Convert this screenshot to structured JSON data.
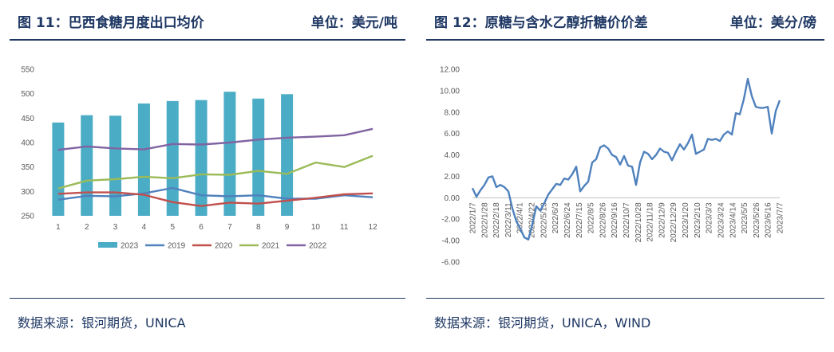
{
  "left": {
    "title": "图 11：巴西食糖月度出口均价",
    "unit": "单位：美元/吨",
    "source": "数据来源：银河期货，UNICA"
  },
  "right": {
    "title": "图 12：原糖与含水乙醇折糖价价差",
    "unit": "单位：美分/磅",
    "source": "数据来源：银河期货，UNICA，WIND"
  },
  "chart_data": [
    {
      "type": "bar+line",
      "categories": [
        "1",
        "2",
        "3",
        "4",
        "5",
        "6",
        "7",
        "8",
        "9",
        "10",
        "11",
        "12"
      ],
      "ylim": [
        250,
        550
      ],
      "yticks": [
        250,
        300,
        350,
        400,
        450,
        500,
        550
      ],
      "legend_position": "bottom",
      "grid": false,
      "series": [
        {
          "name": "2023",
          "kind": "bar",
          "color": "#4bacc6",
          "values": [
            441,
            456,
            455,
            480,
            485,
            487,
            504,
            490,
            499,
            null,
            null,
            null
          ]
        },
        {
          "name": "2019",
          "kind": "line",
          "color": "#4f81bd",
          "values": [
            283,
            291,
            290,
            296,
            307,
            292,
            290,
            292,
            285,
            285,
            292,
            288
          ]
        },
        {
          "name": "2020",
          "kind": "line",
          "color": "#c0504d",
          "values": [
            295,
            298,
            298,
            293,
            278,
            270,
            277,
            275,
            281,
            287,
            294,
            296
          ]
        },
        {
          "name": "2021",
          "kind": "line",
          "color": "#9bbb59",
          "values": [
            306,
            322,
            325,
            330,
            327,
            335,
            334,
            342,
            336,
            359,
            350,
            373
          ]
        },
        {
          "name": "2022",
          "kind": "line",
          "color": "#8064a2",
          "values": [
            385,
            392,
            388,
            386,
            397,
            396,
            400,
            406,
            410,
            412,
            415,
            428
          ]
        }
      ]
    },
    {
      "type": "line",
      "color": "#4f81bd",
      "ylim": [
        -6,
        12
      ],
      "yticks": [
        "12.00",
        "10.00",
        "8.00",
        "6.00",
        "4.00",
        "2.00",
        "0.00",
        "-2.00",
        "-4.00",
        "-6.00"
      ],
      "xticks": [
        "2022/1/7",
        "2022/1/28",
        "2022/2/18",
        "2022/3/11",
        "2022/4/1",
        "2022/4/22",
        "2022/5/13",
        "2022/6/3",
        "2022/6/24",
        "2022/7/15",
        "2022/8/5",
        "2022/8/26",
        "2022/9/16",
        "2022/10/7",
        "2022/10/28",
        "2022/11/18",
        "2022/12/9",
        "2022/12/29",
        "2023/1/20",
        "2023/2/10",
        "2023/3/3",
        "2023/3/24",
        "2023/4/14",
        "2023/5/5",
        "2023/5/26",
        "2023/6/16",
        "2023/7/7"
      ],
      "values": [
        0.9,
        0.1,
        0.7,
        1.2,
        1.9,
        2.0,
        1.0,
        1.2,
        1.0,
        0.6,
        -1.0,
        -2.2,
        -2.9,
        -3.7,
        -3.9,
        -2.5,
        -0.8,
        -1.2,
        -0.5,
        0.3,
        0.8,
        1.3,
        1.2,
        1.8,
        1.7,
        2.2,
        2.9,
        0.6,
        1.1,
        1.5,
        3.3,
        3.6,
        4.7,
        4.9,
        4.6,
        4.0,
        3.8,
        3.1,
        3.9,
        3.0,
        2.9,
        1.2,
        3.3,
        4.3,
        4.1,
        3.6,
        4.0,
        4.6,
        4.3,
        4.2,
        3.5,
        4.3,
        5.0,
        4.5,
        5.1,
        5.9,
        4.1,
        4.3,
        4.5,
        5.5,
        5.4,
        5.5,
        5.3,
        5.9,
        6.2,
        5.9,
        7.9,
        7.8,
        9.2,
        11.1,
        9.5,
        8.5,
        8.4,
        8.4,
        8.5,
        6.0,
        8.1,
        9.1
      ]
    }
  ]
}
